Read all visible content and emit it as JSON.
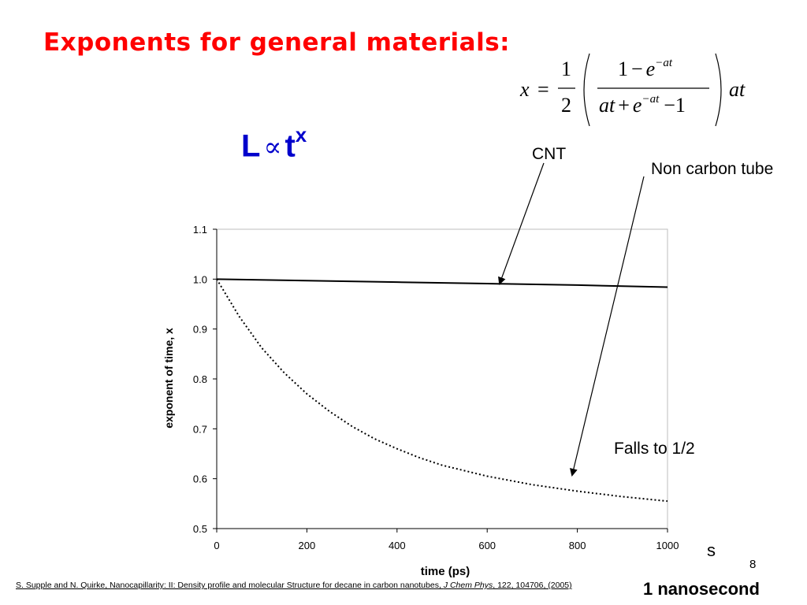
{
  "slide": {
    "title": "Exponents for general materials:",
    "proportionality": {
      "lhs": "L",
      "symbol": "∝",
      "base": "t",
      "exponent": "x"
    },
    "formula": {
      "lhs": "x",
      "equals": "=",
      "half_num": "1",
      "half_den": "2",
      "inner_num": "1 − e^−at",
      "inner_den": "at + e^−at − 1",
      "tail": "at"
    },
    "annotations": {
      "cnt": "CNT",
      "non_carbon": "Non carbon tube",
      "falls": "Falls to 1/2",
      "seconds_unit": "s",
      "nanosecond": "1 nanosecond"
    },
    "citation": {
      "authors": "S. Supple and N. Quirke, Nanocapillarity: II: Density profile and molecular  Structure for decane in carbon nanotubes,  ",
      "journal": "J Chem Phys",
      "rest": ", 122, 104706, (2005)"
    },
    "page_number": "8",
    "colors": {
      "title": "#ff0000",
      "proportionality": "#0000cc",
      "lines": "#000000"
    }
  },
  "chart_data": {
    "type": "line",
    "title": "",
    "xlabel": "time (ps)",
    "ylabel": "exponent of time, x",
    "xlim": [
      0,
      1000
    ],
    "ylim": [
      0.5,
      1.1
    ],
    "x_ticks": [
      0,
      200,
      400,
      600,
      800,
      1000
    ],
    "y_ticks": [
      "0.5",
      "0.6",
      "0.7",
      "0.8",
      "0.9",
      "1.0",
      "1.1"
    ],
    "grid": false,
    "series": [
      {
        "style": "solid",
        "x": [
          0,
          200,
          400,
          600,
          800,
          1000
        ],
        "y": [
          1.0,
          0.997,
          0.994,
          0.991,
          0.988,
          0.984
        ]
      },
      {
        "style": "dotted",
        "x": [
          0,
          50,
          100,
          150,
          200,
          250,
          300,
          350,
          400,
          450,
          500,
          600,
          700,
          800,
          900,
          1000
        ],
        "y": [
          1.0,
          0.925,
          0.862,
          0.812,
          0.77,
          0.735,
          0.705,
          0.68,
          0.66,
          0.642,
          0.627,
          0.605,
          0.588,
          0.575,
          0.564,
          0.555
        ]
      }
    ]
  }
}
